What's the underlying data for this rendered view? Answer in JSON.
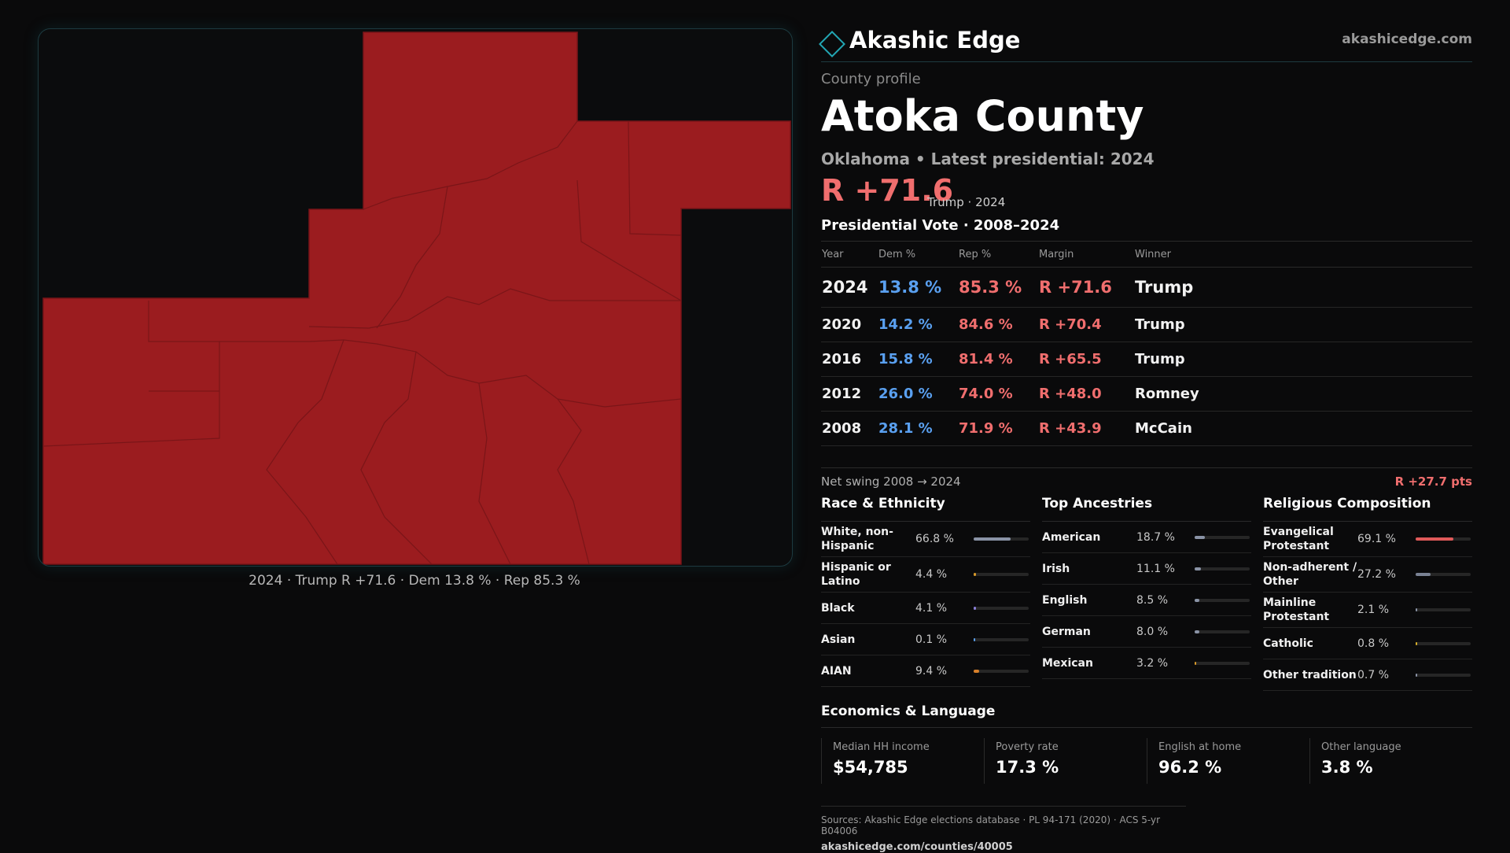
{
  "map": {
    "caption": "2024 · Trump R +71.6 · Dem 13.8 % · Rep 85.3 %",
    "fill_color": "#9b1c1f",
    "border_color": "#7a1518"
  },
  "brand": {
    "name": "Akashic Edge",
    "url": "akashicedge.com"
  },
  "profile": {
    "eyebrow": "County profile",
    "county": "Atoka County",
    "subtitle": "Oklahoma • Latest presidential: 2024",
    "margin": "R +71.6",
    "margin_note": "Trump · 2024"
  },
  "vote": {
    "title": "Presidential Vote · 2008–2024",
    "headers": [
      "Year",
      "Dem %",
      "Rep %",
      "Margin",
      "Winner"
    ],
    "rows": [
      {
        "year": "2024",
        "dem": "13.8 %",
        "rep": "85.3 %",
        "margin": "R +71.6",
        "winner": "Trump"
      },
      {
        "year": "2020",
        "dem": "14.2 %",
        "rep": "84.6 %",
        "margin": "R +70.4",
        "winner": "Trump"
      },
      {
        "year": "2016",
        "dem": "15.8 %",
        "rep": "81.4 %",
        "margin": "R +65.5",
        "winner": "Trump"
      },
      {
        "year": "2012",
        "dem": "26.0 %",
        "rep": "74.0 %",
        "margin": "R +48.0",
        "winner": "Romney"
      },
      {
        "year": "2008",
        "dem": "28.1 %",
        "rep": "71.9 %",
        "margin": "R +43.9",
        "winner": "McCain"
      }
    ],
    "swing_label": "Net swing 2008 → 2024",
    "swing_value": "R +27.7 pts"
  },
  "race": {
    "title": "Race & Ethnicity",
    "rows": [
      {
        "label": "White, non-Hispanic",
        "value": "66.8 %",
        "pct": 66.8,
        "color": "#8a93a6"
      },
      {
        "label": "Hispanic or Latino",
        "value": "4.4 %",
        "pct": 4.4,
        "color": "#d89a2a"
      },
      {
        "label": "Black",
        "value": "4.1 %",
        "pct": 4.1,
        "color": "#8a7fd8"
      },
      {
        "label": "Asian",
        "value": "0.1 %",
        "pct": 0.1,
        "color": "#5aa0f0"
      },
      {
        "label": "AIAN",
        "value": "9.4 %",
        "pct": 9.4,
        "color": "#d8802a"
      }
    ]
  },
  "ancestry": {
    "title": "Top Ancestries",
    "rows": [
      {
        "label": "American",
        "value": "18.7 %",
        "pct": 18.7,
        "color": "#8a93a6"
      },
      {
        "label": "Irish",
        "value": "11.1 %",
        "pct": 11.1,
        "color": "#8a93a6"
      },
      {
        "label": "English",
        "value": "8.5 %",
        "pct": 8.5,
        "color": "#8a93a6"
      },
      {
        "label": "German",
        "value": "8.0 %",
        "pct": 8.0,
        "color": "#8a93a6"
      },
      {
        "label": "Mexican",
        "value": "3.2 %",
        "pct": 3.2,
        "color": "#d89a2a"
      }
    ]
  },
  "religion": {
    "title": "Religious Composition",
    "rows": [
      {
        "label": "Evangelical Protestant",
        "value": "69.1 %",
        "pct": 69.1,
        "color": "#e05a5a"
      },
      {
        "label": "Non-adherent / Other",
        "value": "27.2 %",
        "pct": 27.2,
        "color": "#7a8294"
      },
      {
        "label": "Mainline Protestant",
        "value": "2.1 %",
        "pct": 2.1,
        "color": "#8a93a6"
      },
      {
        "label": "Catholic",
        "value": "0.8 %",
        "pct": 0.8,
        "color": "#d8b02a"
      },
      {
        "label": "Other tradition",
        "value": "0.7 %",
        "pct": 0.7,
        "color": "#8a93a6"
      }
    ]
  },
  "economics": {
    "title": "Economics & Language",
    "cards": [
      {
        "label": "Median HH income",
        "value": "$54,785"
      },
      {
        "label": "Poverty rate",
        "value": "17.3 %"
      },
      {
        "label": "English at home",
        "value": "96.2 %"
      },
      {
        "label": "Other language",
        "value": "3.8 %"
      }
    ]
  },
  "sources": {
    "text": "Sources: Akashic Edge elections database · PL 94-171 (2020) · ACS 5-yr B04006",
    "url": "akashicedge.com/counties/40005"
  }
}
